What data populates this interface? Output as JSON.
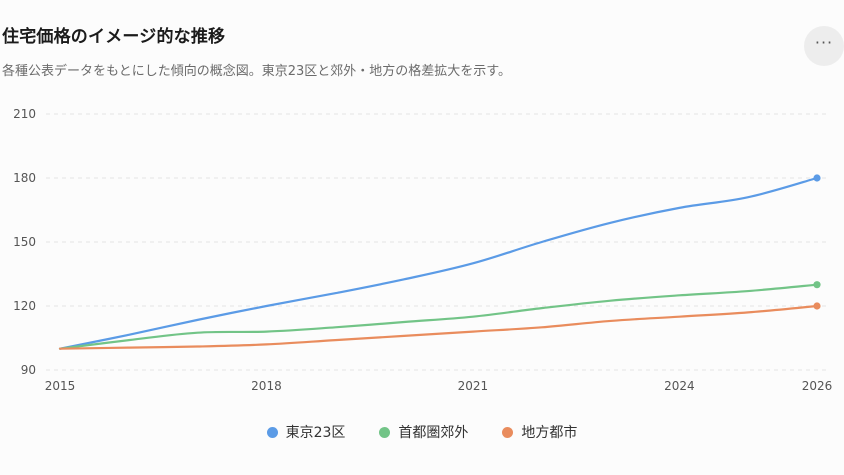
{
  "header": {
    "title": "住宅価格のイメージ的な推移",
    "subtitle": "各種公表データをもとにした傾向の概念図。東京23区と郊外・地方の格差拡大を示す。",
    "more_icon": "more-horizontal-icon",
    "more_label": "···"
  },
  "colors": {
    "tokyo": "#5b9be6",
    "suburbs": "#72c487",
    "regional": "#e98c5d",
    "grid": "#e3e3e3",
    "tick": "#555555"
  },
  "chart_data": {
    "type": "line",
    "title": "住宅価格のイメージ的な推移",
    "subtitle": "各種公表データをもとにした傾向の概念図。東京23区と郊外・地方の格差拡大を示す。",
    "x": [
      2015,
      2016,
      2017,
      2018,
      2019,
      2020,
      2021,
      2022,
      2023,
      2024,
      2025,
      2026
    ],
    "xticks": [
      "2015",
      "2018",
      "2021",
      "2024",
      "2026"
    ],
    "yticks": [
      90,
      120,
      150,
      180,
      210
    ],
    "xlim": [
      2015,
      2026
    ],
    "ylim": [
      90,
      210
    ],
    "grid": true,
    "legend_position": "bottom",
    "series": [
      {
        "name": "東京23区",
        "color": "#5b9be6",
        "values": [
          100,
          106.5,
          113.5,
          120,
          126,
          132.5,
          140,
          150,
          159,
          166,
          171,
          180
        ]
      },
      {
        "name": "首都圏郊外",
        "color": "#72c487",
        "values": [
          100,
          104,
          107.5,
          108,
          110,
          112.5,
          115,
          119,
          122.5,
          125,
          127,
          130
        ]
      },
      {
        "name": "地方都市",
        "color": "#e98c5d",
        "values": [
          100,
          100.5,
          101,
          102,
          104,
          106,
          108,
          110,
          113,
          115,
          117,
          120
        ]
      }
    ]
  }
}
